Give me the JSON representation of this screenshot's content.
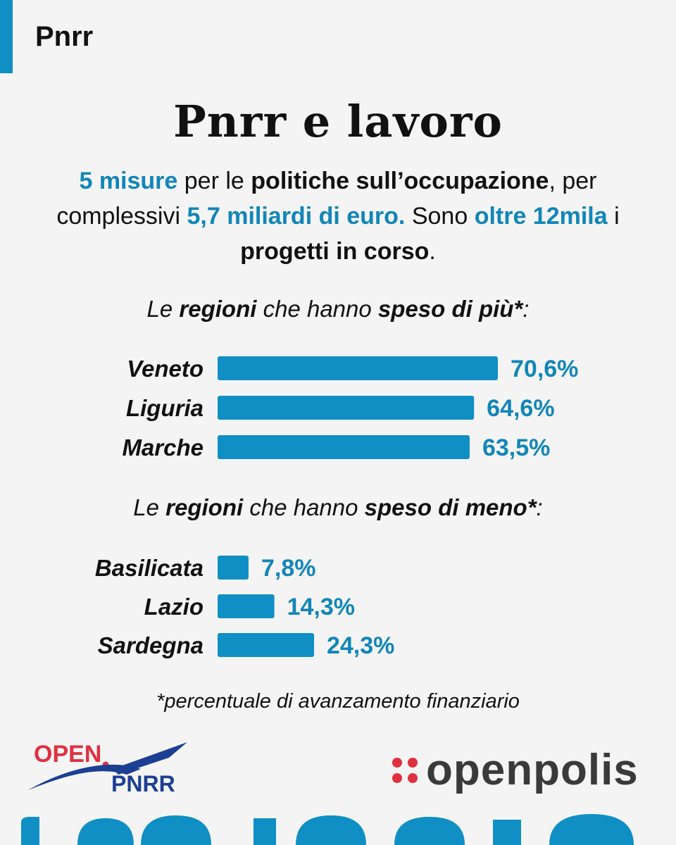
{
  "header": {
    "tag": "Pnrr"
  },
  "title": "Pnrr e lavoro",
  "intro": {
    "p1": "5 misure",
    "p2": " per le ",
    "p3": "politiche sull’occupazione",
    "p4": ", per complessivi ",
    "p5": "5,7 miliardi di euro.",
    "p6": " Sono ",
    "p7": "oltre 12mila",
    "p8": " i ",
    "p9": "progetti in corso",
    "p10": "."
  },
  "section_top": {
    "pre": "Le ",
    "b1": "regioni",
    "mid": " che hanno ",
    "b2": "speso di più*",
    "post": ":"
  },
  "section_bottom": {
    "pre": "Le ",
    "b1": "regioni",
    "mid": " che hanno ",
    "b2": "speso di meno*",
    "post": ":"
  },
  "chart_data": [
    {
      "type": "bar",
      "orientation": "horizontal",
      "categories": [
        "Veneto",
        "Liguria",
        "Marche"
      ],
      "values": [
        70.6,
        64.6,
        63.5
      ],
      "value_labels": [
        "70,6%",
        "64,6%",
        "63,5%"
      ],
      "color": "#0f8fc4"
    },
    {
      "type": "bar",
      "orientation": "horizontal",
      "categories": [
        "Basilicata",
        "Lazio",
        "Sardegna"
      ],
      "values": [
        7.8,
        14.3,
        24.3
      ],
      "value_labels": [
        "7,8%",
        "14,3%",
        "24,3%"
      ],
      "color": "#0f8fc4"
    }
  ],
  "footnote": "*percentuale di avanzamento finanziario",
  "logos": {
    "left_top": "OPEN",
    "left_bottom": "PNRR",
    "right": "openpolis"
  },
  "colors": {
    "accent": "#0f8fc4",
    "highlight_text": "#1186b8",
    "brand_red": "#e03040",
    "brand_blue": "#1b3f93"
  }
}
